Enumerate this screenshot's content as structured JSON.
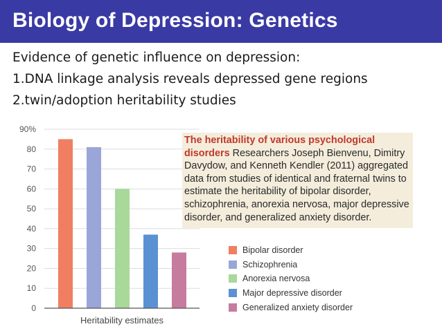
{
  "slide": {
    "title": "Biology of Depression: Genetics",
    "lines": [
      "Evidence of genetic influence on depression:",
      "1.DNA linkage analysis reveals depressed gene regions",
      "2.twin/adoption heritability studies"
    ]
  },
  "caption": {
    "heading": "The heritability of various psychological disorders",
    "body": "Researchers Joseph Bienvenu, Dimitry Davydow, and Kenneth Kendler (2011) aggregated data from studies of identical and fraternal twins to estimate the heritability of bipolar disorder, schizophrenia, anorexia nervosa, major depressive disorder, and generalized anxiety disorder."
  },
  "colors": {
    "title_bar": "#3a3aa4"
  },
  "chart_data": {
    "type": "bar",
    "title": "",
    "xlabel": "Heritability estimates",
    "ylabel": "",
    "ylim": [
      0,
      90
    ],
    "yticks": [
      "0",
      "10",
      "20",
      "30",
      "40",
      "50",
      "60",
      "70",
      "80",
      "90%"
    ],
    "categories": [
      "Bipolar disorder",
      "Schizophrenia",
      "Anorexia nervosa",
      "Major depressive disorder",
      "Generalized anxiety disorder"
    ],
    "values": [
      85,
      81,
      60,
      37,
      28
    ],
    "colors": [
      "#f07f62",
      "#9aa6d8",
      "#a8d89a",
      "#5b91d2",
      "#c77b9e"
    ],
    "grid": true,
    "legend": "bottom-right"
  }
}
